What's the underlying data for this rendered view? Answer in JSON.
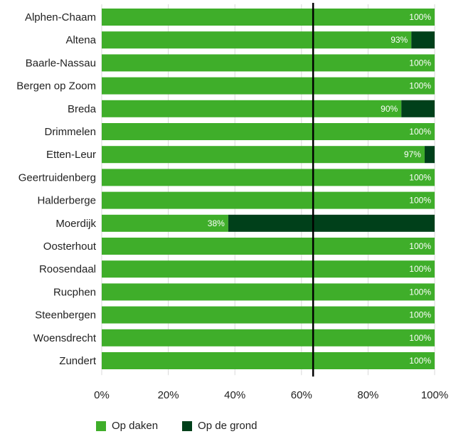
{
  "chart_data": {
    "type": "bar",
    "orientation": "horizontal",
    "stacked": true,
    "categories": [
      "Alphen-Chaam",
      "Altena",
      "Baarle-Nassau",
      "Bergen op Zoom",
      "Breda",
      "Drimmelen",
      "Etten-Leur",
      "Geertruidenberg",
      "Halderberge",
      "Moerdijk",
      "Oosterhout",
      "Roosendaal",
      "Rucphen",
      "Steenbergen",
      "Woensdrecht",
      "Zundert"
    ],
    "series": [
      {
        "name": "Op daken",
        "color": "#3fae2a",
        "values": [
          100,
          93,
          100,
          100,
          90,
          100,
          97,
          100,
          100,
          38,
          100,
          100,
          100,
          100,
          100,
          100
        ]
      },
      {
        "name": "Op de grond",
        "color": "#00401a",
        "values": [
          0,
          7,
          0,
          0,
          10,
          0,
          3,
          0,
          0,
          62,
          0,
          0,
          0,
          0,
          0,
          0
        ]
      }
    ],
    "data_labels": [
      "100%",
      "93%",
      "100%",
      "100%",
      "90%",
      "100%",
      "97%",
      "100%",
      "100%",
      "38%",
      "100%",
      "100%",
      "100%",
      "100%",
      "100%",
      "100%"
    ],
    "xticks": [
      "0%",
      "20%",
      "40%",
      "60%",
      "80%",
      "100%"
    ],
    "xlim": [
      0,
      100
    ],
    "reference_line": 63.5,
    "grid": true,
    "legend_position": "bottom",
    "title": "",
    "xlabel": "",
    "ylabel": ""
  },
  "legend": {
    "items": [
      {
        "label": "Op daken",
        "color": "#3fae2a"
      },
      {
        "label": "Op de grond",
        "color": "#00401a"
      }
    ]
  }
}
